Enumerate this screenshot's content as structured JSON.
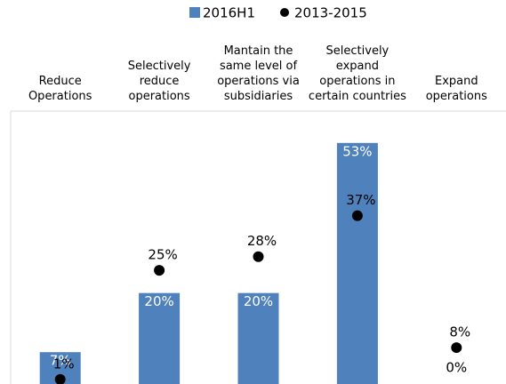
{
  "chart_data": {
    "type": "bar",
    "categories": [
      "Reduce\nOperations",
      "Selectively\nreduce\noperations",
      "Mantain the\nsame level of\noperations via\nsubsidiaries",
      "Selectively\nexpand\noperations in\ncertain countries",
      "Expand\noperations"
    ],
    "series": [
      {
        "name": "2016H1",
        "color": "#4f81bd",
        "values": [
          7,
          20,
          20,
          53,
          0
        ],
        "value_labels": [
          "7%",
          "20%",
          "20%",
          "53%",
          "0%"
        ]
      },
      {
        "name": "2013-2015",
        "color": "#000000",
        "values": [
          1,
          25,
          28,
          37,
          8
        ],
        "value_labels": [
          "1%",
          "25%",
          "28%",
          "37%",
          "8%"
        ]
      }
    ],
    "ylim": [
      0,
      60
    ]
  }
}
